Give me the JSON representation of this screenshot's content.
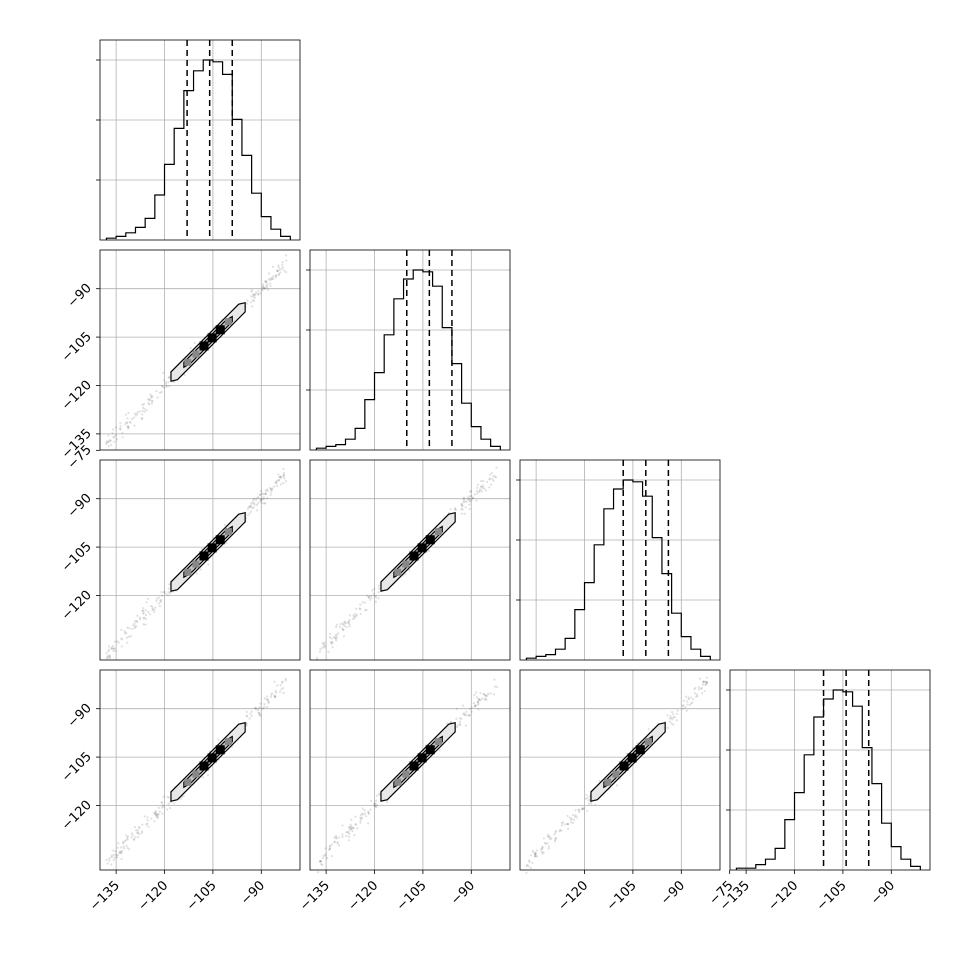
{
  "chart_data": {
    "type": "scatter",
    "subtype": "corner-plot",
    "n_params": 4,
    "title": "",
    "axis_range": [
      -140,
      -78
    ],
    "grid": true,
    "quantile_lines": [
      -113,
      -106,
      -99
    ],
    "histogram_bin_edges": [
      -138,
      -135,
      -132,
      -129,
      -126,
      -123,
      -120,
      -117,
      -114,
      -111,
      -108,
      -105,
      -102,
      -99,
      -96,
      -93,
      -90,
      -87,
      -84,
      -81
    ],
    "histograms": [
      {
        "param": 1,
        "counts": [
          1,
          2,
          4,
          7,
          12,
          25,
          42,
          62,
          83,
          94,
          100,
          99,
          92,
          67,
          47,
          26,
          13,
          6,
          2
        ],
        "quantiles": [
          -113,
          -106,
          -99
        ]
      },
      {
        "param": 2,
        "counts": [
          1,
          2,
          3,
          6,
          12,
          28,
          43,
          64,
          84,
          95,
          100,
          99,
          91,
          68,
          48,
          26,
          13,
          6,
          2
        ],
        "quantiles": [
          -110,
          -103,
          -96
        ]
      },
      {
        "param": 3,
        "counts": [
          1,
          2,
          3,
          6,
          12,
          28,
          43,
          64,
          84,
          95,
          100,
          99,
          91,
          68,
          48,
          26,
          13,
          6,
          2
        ],
        "quantiles": [
          -108,
          -101,
          -94
        ]
      },
      {
        "param": 4,
        "counts": [
          1,
          1,
          3,
          6,
          12,
          28,
          43,
          64,
          85,
          95,
          100,
          99,
          91,
          68,
          48,
          26,
          13,
          6,
          2
        ],
        "quantiles": [
          -111,
          -104,
          -97
        ]
      }
    ],
    "scatter_trend": {
      "x_start": -138,
      "x_end": -82
    },
    "contour_region": {
      "x_start": -118,
      "x_end": -95,
      "halfwidth": 2.2
    },
    "inner_region": {
      "x_start": -114,
      "x_end": -99,
      "halfwidth": 1.2
    },
    "ticks": {
      "diag_x": [
        -135,
        -120,
        -105,
        -90
      ],
      "diag_x_labels": [
        "−135",
        "−120",
        "−105",
        "−90"
      ],
      "col3_x": [
        -120,
        -105,
        -90,
        -75
      ],
      "col3_x_labels": [
        "−120",
        "−105",
        "−90",
        "−75"
      ],
      "col4_x": [
        -135,
        -120,
        -105,
        -90
      ],
      "col4_x_labels": [
        "−135",
        "−120",
        "−105",
        "−90"
      ],
      "row2_y": [
        -135,
        -120,
        -105,
        -90
      ],
      "row2_y_labels": [
        "−135",
        "−120",
        "−105",
        "−90"
      ],
      "row3_y": [
        -120,
        -105,
        -90,
        -75
      ],
      "row3_y_labels": [
        "−120",
        "−105",
        "−90",
        "−75"
      ],
      "row4_y": [
        -120,
        -105,
        -90
      ],
      "row4_y_labels": [
        "−120",
        "−105",
        "−90"
      ]
    },
    "colors": {
      "line": "#000000",
      "grid": "#b0b0b0",
      "scatter": "#555555",
      "fill_outer": "#e8e8e8",
      "fill_inner": "#c4c4c4",
      "bin_dark": "#000000",
      "bin_mid": "#888888"
    }
  }
}
